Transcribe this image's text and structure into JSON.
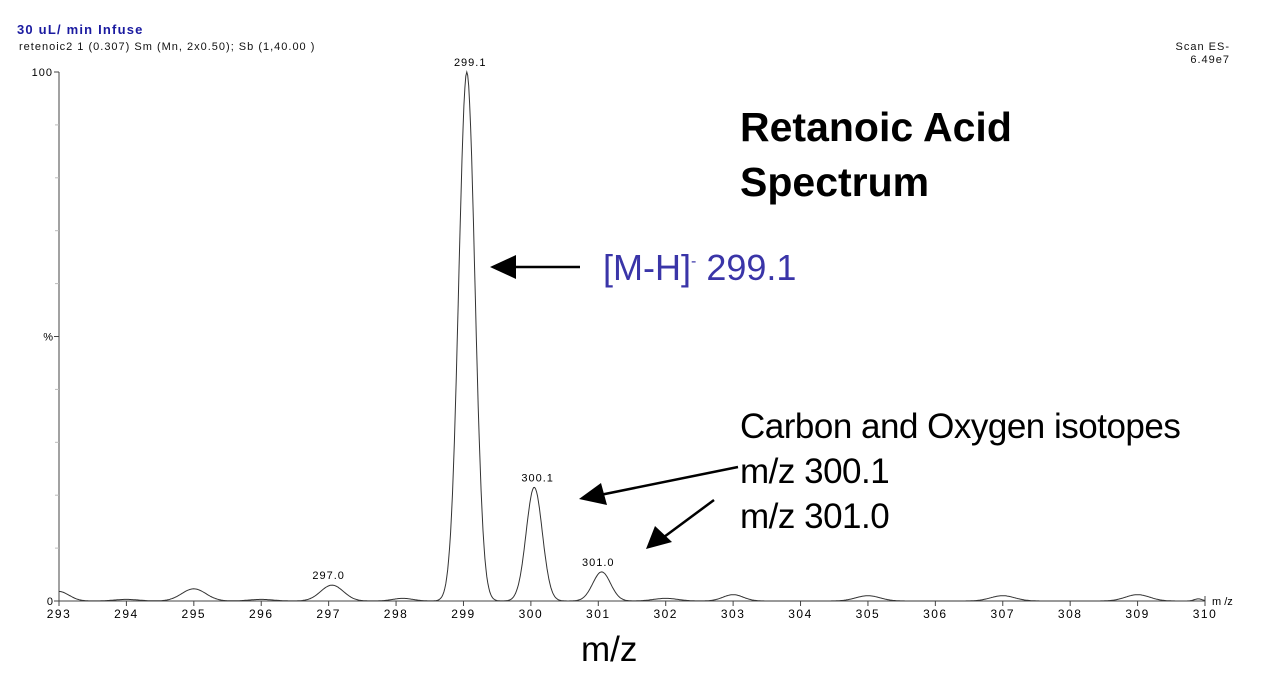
{
  "header": {
    "title": "30 uL/ min Infuse",
    "subtitle": "retenoic2  1 (0.307) Sm (Mn, 2x0.50); Sb (1,40.00 )",
    "scan_mode": "Scan ES-",
    "intensity": "6.49e7"
  },
  "annotations": {
    "title_line1": "Retanoic Acid",
    "title_line2": "Spectrum",
    "main_ion_prefix": "[M-H]",
    "main_ion_charge": "-",
    "main_ion_mz": " 299.1",
    "isotopes_line1": "Carbon and Oxygen isotopes",
    "isotopes_line2": "m/z 300.1",
    "isotopes_line3": "m/z 301.0",
    "xaxis_big_label": "m/z",
    "arrow_color": "#000000",
    "main_ion_color": "#3a35a8"
  },
  "chart_data": {
    "type": "line",
    "title": "Retanoic Acid Spectrum",
    "xlabel": "m/z",
    "ylabel": "%",
    "xlim": [
      293,
      310
    ],
    "ylim": [
      0,
      100
    ],
    "x_ticks": [
      293,
      294,
      295,
      296,
      297,
      298,
      299,
      300,
      301,
      302,
      303,
      304,
      305,
      306,
      307,
      308,
      309,
      310
    ],
    "y_tick_labels": [
      "0",
      "%",
      "100"
    ],
    "grid": false,
    "peak_labels": [
      {
        "mz": 297.0,
        "label": "297.0",
        "intensity": 3.0
      },
      {
        "mz": 299.1,
        "label": "299.1",
        "intensity": 100.0
      },
      {
        "mz": 300.1,
        "label": "300.1",
        "intensity": 21.5
      },
      {
        "mz": 301.0,
        "label": "301.0",
        "intensity": 5.5
      }
    ],
    "peaks": [
      {
        "mz": 293.0,
        "intensity": 1.8,
        "width": 0.25
      },
      {
        "mz": 294.0,
        "intensity": 0.3,
        "width": 0.3
      },
      {
        "mz": 295.0,
        "intensity": 2.3,
        "width": 0.3
      },
      {
        "mz": 296.0,
        "intensity": 0.3,
        "width": 0.3
      },
      {
        "mz": 297.05,
        "intensity": 3.0,
        "width": 0.28
      },
      {
        "mz": 298.1,
        "intensity": 0.5,
        "width": 0.25
      },
      {
        "mz": 299.05,
        "intensity": 100.0,
        "width": 0.2
      },
      {
        "mz": 300.05,
        "intensity": 21.5,
        "width": 0.2
      },
      {
        "mz": 301.05,
        "intensity": 5.5,
        "width": 0.22
      },
      {
        "mz": 302.0,
        "intensity": 0.5,
        "width": 0.3
      },
      {
        "mz": 303.0,
        "intensity": 1.2,
        "width": 0.25
      },
      {
        "mz": 305.0,
        "intensity": 1.0,
        "width": 0.3
      },
      {
        "mz": 307.0,
        "intensity": 1.0,
        "width": 0.3
      },
      {
        "mz": 309.0,
        "intensity": 1.2,
        "width": 0.3
      },
      {
        "mz": 309.9,
        "intensity": 0.4,
        "width": 0.1
      }
    ],
    "x_axis_unit_label": "m /z",
    "legend": null
  }
}
